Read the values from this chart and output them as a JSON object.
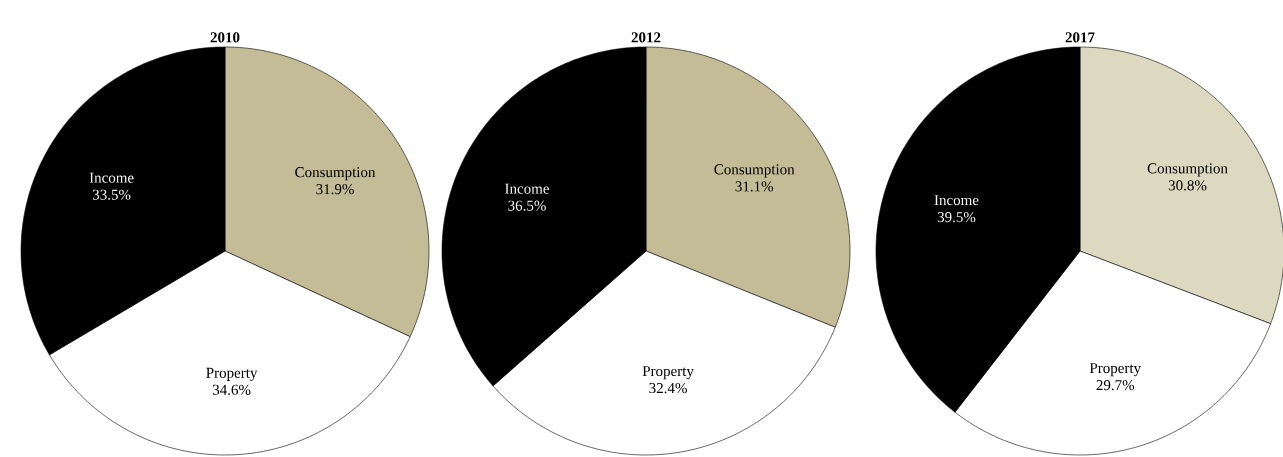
{
  "chart_data": [
    {
      "type": "pie",
      "title": "2010",
      "categories": [
        "Consumption",
        "Property",
        "Income"
      ],
      "values": [
        31.9,
        34.6,
        33.5
      ],
      "value_labels": [
        "31.9%",
        "34.6%",
        "33.5%"
      ],
      "colors": [
        "#c4bc96",
        "#ffffff",
        "#000000"
      ]
    },
    {
      "type": "pie",
      "title": "2012",
      "categories": [
        "Consumption",
        "Property",
        "Income"
      ],
      "values": [
        31.1,
        32.4,
        36.5
      ],
      "value_labels": [
        "31.1%",
        "32.4%",
        "36.5%"
      ],
      "colors": [
        "#c4bc96",
        "#ffffff",
        "#000000"
      ]
    },
    {
      "type": "pie",
      "title": "2017",
      "categories": [
        "Consumption",
        "Property",
        "Income"
      ],
      "values": [
        30.8,
        29.7,
        39.5
      ],
      "value_labels": [
        "30.8%",
        "29.7%",
        "39.5%"
      ],
      "colors": [
        "#ddd8c0",
        "#ffffff",
        "#000000"
      ]
    }
  ]
}
